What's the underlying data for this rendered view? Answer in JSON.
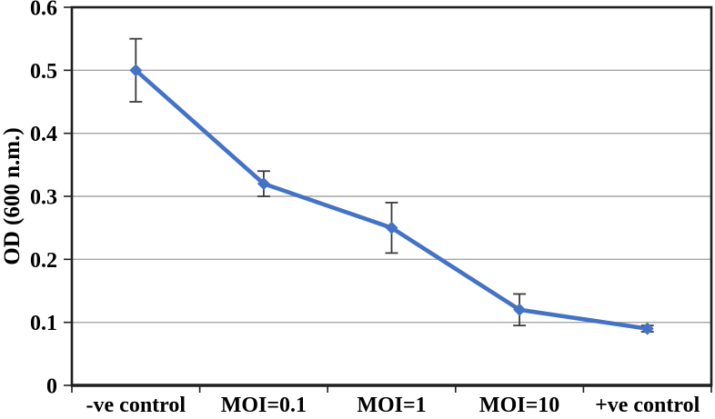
{
  "chart_data": {
    "type": "line",
    "title": "",
    "xlabel": "",
    "ylabel": "OD (600 n.m.)",
    "categories": [
      "-ve control",
      "MOI=0.1",
      "MOI=1",
      "MOI=10",
      "+ve control"
    ],
    "series": [
      {
        "name": "OD (600 n.m.)",
        "values": [
          0.5,
          0.32,
          0.25,
          0.12,
          0.09
        ],
        "errors": [
          0.05,
          0.02,
          0.04,
          0.025,
          0.005
        ]
      }
    ],
    "ylim": [
      0,
      0.6
    ],
    "yticks": [
      0,
      0.1,
      0.2,
      0.3,
      0.4,
      0.5,
      0.6
    ],
    "ytick_labels": [
      "0",
      "0.1",
      "0.2",
      "0.3",
      "0.4",
      "0.5",
      "0.6"
    ],
    "grid": "horizontal",
    "legend": "none",
    "marker": "diamond",
    "colors": {
      "line": "#4472C4",
      "marker": "#4472C4",
      "grid": "#A6A6A6",
      "axis": "#1F1F1F",
      "error_bar": "#3B3B3B",
      "text": "#000000",
      "background": "#FFFFFF"
    }
  }
}
